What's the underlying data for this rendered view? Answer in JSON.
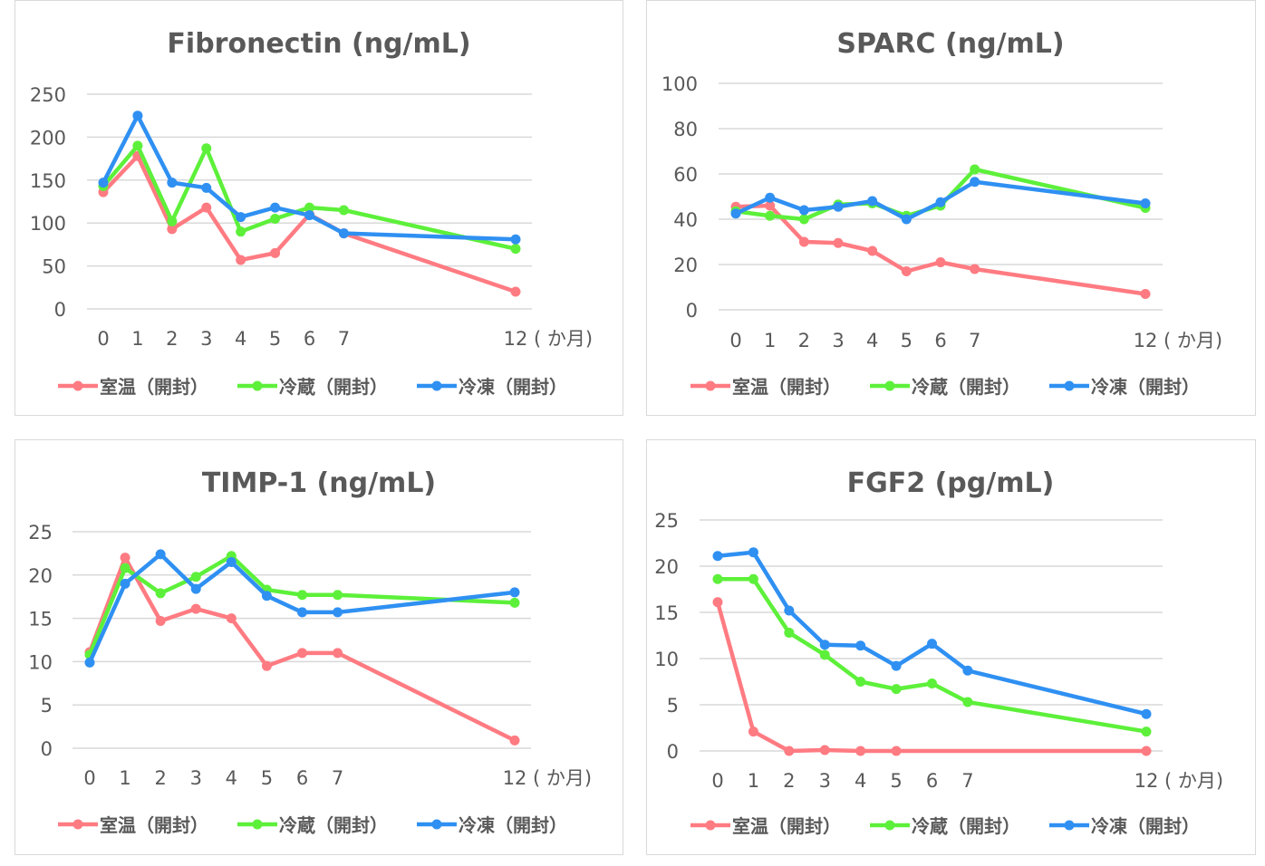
{
  "legend_labels": [
    "室温（開封）",
    "冷蔵（開封）",
    "冷凍（開封）"
  ],
  "series_colors": [
    "#FF7B82",
    "#5DF03A",
    "#2F90F2"
  ],
  "chart_data": [
    {
      "type": "line",
      "title": "Fibronectin (ng/mL)",
      "xlabel": "( か月)",
      "ylabel": "",
      "x": [
        0,
        1,
        2,
        3,
        4,
        5,
        6,
        7,
        12
      ],
      "x_tick_labels": [
        "0",
        "1",
        "2",
        "3",
        "4",
        "5",
        "6",
        "7",
        "12"
      ],
      "ylim": [
        0,
        250
      ],
      "y_ticks": [
        0,
        50,
        100,
        150,
        200,
        250
      ],
      "grid": true,
      "legend_position": "bottom",
      "series": [
        {
          "name": "室温（開封）",
          "color": "#FF7B82",
          "values": [
            136,
            178,
            93,
            118,
            57,
            65,
            110,
            88,
            20
          ]
        },
        {
          "name": "冷蔵（開封）",
          "color": "#5DF03A",
          "values": [
            143,
            190,
            102,
            187,
            90,
            105,
            118,
            115,
            70
          ]
        },
        {
          "name": "冷凍（開封）",
          "color": "#2F90F2",
          "values": [
            147,
            225,
            147,
            141,
            107,
            118,
            109,
            88,
            81
          ]
        }
      ]
    },
    {
      "type": "line",
      "title": "SPARC (ng/mL)",
      "xlabel": "( か月)",
      "ylabel": "",
      "x": [
        0,
        1,
        2,
        3,
        4,
        5,
        6,
        7,
        12
      ],
      "x_tick_labels": [
        "0",
        "1",
        "2",
        "3",
        "4",
        "5",
        "6",
        "7",
        "12"
      ],
      "ylim": [
        0,
        100
      ],
      "y_ticks": [
        0,
        20,
        40,
        60,
        80,
        100
      ],
      "grid": true,
      "legend_position": "bottom",
      "series": [
        {
          "name": "室温（開封）",
          "color": "#FF7B82",
          "values": [
            45.5,
            46,
            30,
            29.5,
            26,
            17,
            21,
            18,
            7
          ]
        },
        {
          "name": "冷蔵（開封）",
          "color": "#5DF03A",
          "values": [
            43.5,
            41.5,
            40,
            46.5,
            47,
            41.5,
            46,
            62,
            45
          ]
        },
        {
          "name": "冷凍（開封）",
          "color": "#2F90F2",
          "values": [
            42.5,
            49.5,
            44,
            45.5,
            48,
            40,
            47.5,
            56.5,
            47
          ]
        }
      ]
    },
    {
      "type": "line",
      "title": "TIMP-1 (ng/mL)",
      "xlabel": "( か月)",
      "ylabel": "",
      "x": [
        0,
        1,
        2,
        3,
        4,
        5,
        6,
        7,
        12
      ],
      "x_tick_labels": [
        "0",
        "1",
        "2",
        "3",
        "4",
        "5",
        "6",
        "7",
        "12"
      ],
      "ylim": [
        0,
        25
      ],
      "y_ticks": [
        0,
        5,
        10,
        15,
        20,
        25
      ],
      "grid": true,
      "legend_position": "bottom",
      "series": [
        {
          "name": "室温（開封）",
          "color": "#FF7B82",
          "values": [
            11.1,
            22.0,
            14.7,
            16.1,
            15.0,
            9.5,
            11.0,
            11.0,
            0.9
          ]
        },
        {
          "name": "冷蔵（開封）",
          "color": "#5DF03A",
          "values": [
            10.8,
            20.8,
            17.9,
            19.8,
            22.2,
            18.3,
            17.7,
            17.7,
            16.8
          ]
        },
        {
          "name": "冷凍（開封）",
          "color": "#2F90F2",
          "values": [
            9.9,
            19.0,
            22.4,
            18.4,
            21.5,
            17.6,
            15.7,
            15.7,
            18.0
          ]
        }
      ]
    },
    {
      "type": "line",
      "title": "FGF2 (pg/mL)",
      "xlabel": "( か月)",
      "ylabel": "",
      "x": [
        0,
        1,
        2,
        3,
        4,
        5,
        6,
        7,
        12
      ],
      "x_tick_labels": [
        "0",
        "1",
        "2",
        "3",
        "4",
        "5",
        "6",
        "7",
        "12"
      ],
      "ylim": [
        0,
        25
      ],
      "y_ticks": [
        0,
        5,
        10,
        15,
        20,
        25
      ],
      "grid": true,
      "legend_position": "bottom",
      "series": [
        {
          "name": "室温（開封）",
          "color": "#FF7B82",
          "values": [
            16.1,
            2.1,
            0,
            0.1,
            0,
            0,
            null,
            null,
            0
          ]
        },
        {
          "name": "冷蔵（開封）",
          "color": "#5DF03A",
          "values": [
            18.6,
            18.6,
            12.8,
            10.4,
            7.5,
            6.7,
            7.3,
            5.3,
            2.1
          ]
        },
        {
          "name": "冷凍（開封）",
          "color": "#2F90F2",
          "values": [
            21.1,
            21.5,
            15.2,
            11.5,
            11.4,
            9.2,
            11.6,
            8.7,
            4.0
          ]
        }
      ]
    }
  ]
}
